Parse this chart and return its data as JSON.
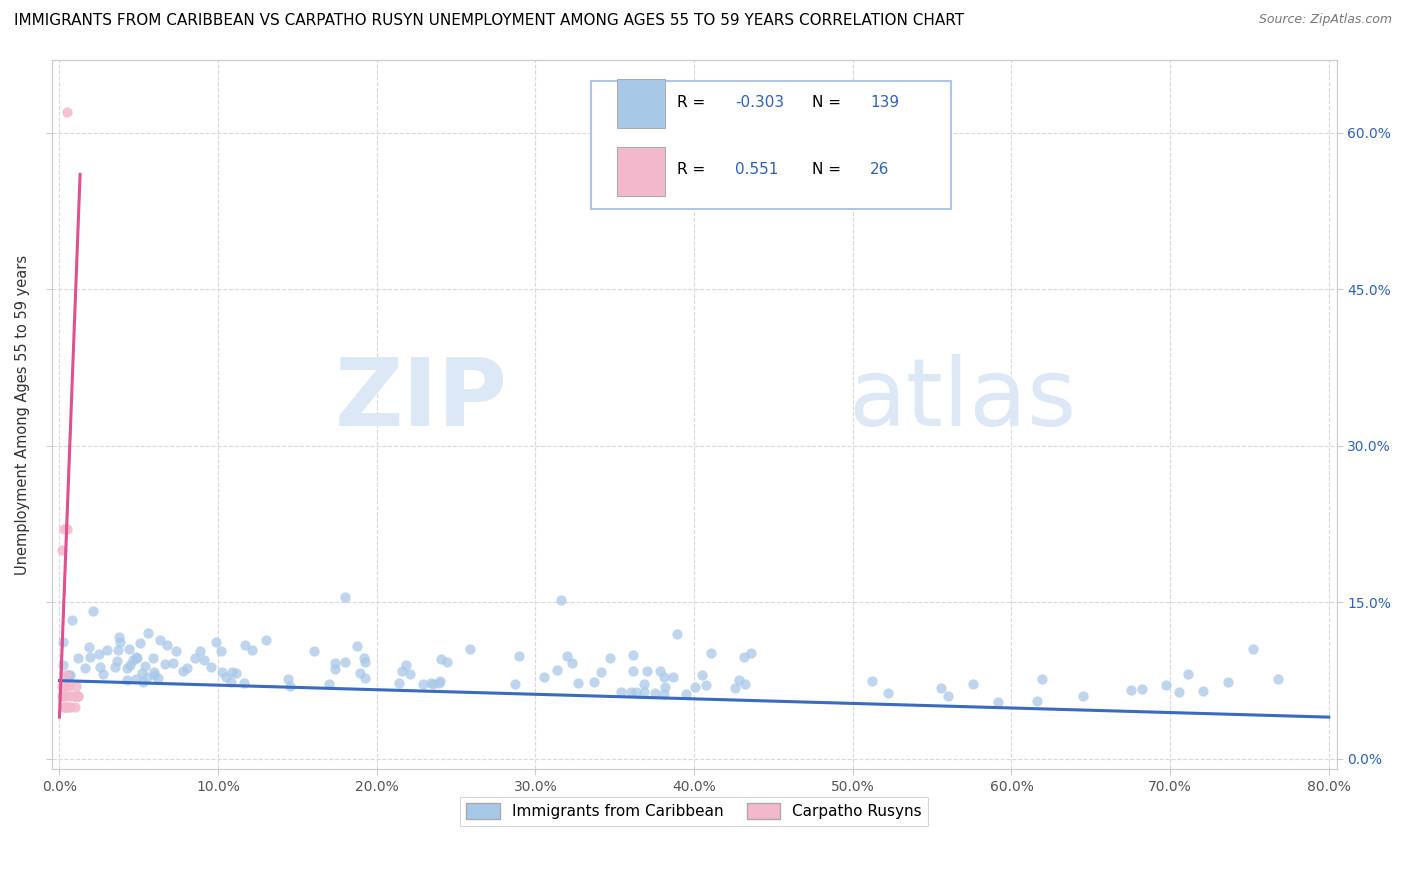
{
  "title": "IMMIGRANTS FROM CARIBBEAN VS CARPATHO RUSYN UNEMPLOYMENT AMONG AGES 55 TO 59 YEARS CORRELATION CHART",
  "source": "Source: ZipAtlas.com",
  "ylabel": "Unemployment Among Ages 55 to 59 years",
  "xlim": [
    -0.005,
    0.805
  ],
  "ylim": [
    -0.01,
    0.67
  ],
  "xticks": [
    0.0,
    0.1,
    0.2,
    0.3,
    0.4,
    0.5,
    0.6,
    0.7,
    0.8
  ],
  "xticklabels": [
    "0.0%",
    "10.0%",
    "20.0%",
    "30.0%",
    "40.0%",
    "50.0%",
    "60.0%",
    "70.0%",
    "80.0%"
  ],
  "yticks": [
    0.0,
    0.15,
    0.3,
    0.45,
    0.6
  ],
  "right_yticklabels": [
    "0.0%",
    "15.0%",
    "30.0%",
    "45.0%",
    "60.0%"
  ],
  "blue_R": -0.303,
  "blue_N": 139,
  "pink_R": 0.551,
  "pink_N": 26,
  "blue_color": "#a8c8e8",
  "pink_color": "#f4b8cc",
  "blue_line_color": "#3a6bbf",
  "pink_line_color": "#e05090",
  "watermark_zip": "ZIP",
  "watermark_atlas": "atlas",
  "legend_label_blue": "Immigrants from Caribbean",
  "legend_label_pink": "Carpatho Rusyns",
  "legend_R_color": "#3060c0",
  "legend_N_color": "#3060c0",
  "grid_color": "#d8d8d8",
  "title_fontsize": 11,
  "source_fontsize": 9
}
